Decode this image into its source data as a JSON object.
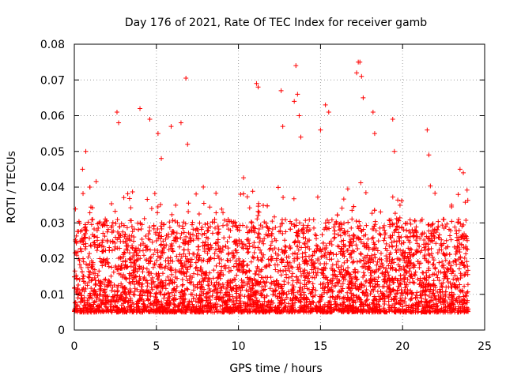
{
  "chart_data": {
    "type": "scatter",
    "title": "Day 176 of 2021, Rate Of TEC Index for receiver gamb",
    "xlabel": "GPS time / hours",
    "ylabel": "ROTI / TECUs",
    "xlim": [
      0,
      25
    ],
    "ylim": [
      0,
      0.08
    ],
    "xticks": [
      0,
      5,
      10,
      15,
      20,
      25
    ],
    "xtick_labels": [
      "0",
      "5",
      "10",
      "15",
      "20",
      "25"
    ],
    "yticks": [
      0,
      0.01,
      0.02,
      0.03,
      0.04,
      0.05,
      0.06,
      0.07,
      0.08
    ],
    "ytick_labels": [
      "0",
      "0.01",
      "0.02",
      "0.03",
      "0.04",
      "0.05",
      "0.06",
      "0.07",
      "0.08"
    ],
    "grid": true,
    "marker": "plus",
    "marker_color": "#ff0000",
    "x_range_observed": [
      0,
      24
    ],
    "series": [
      {
        "name": "ROTI",
        "note": "dense cloud of several thousand points, mostly between 0.005 and 0.03 TECU, reproduced as a representative sample",
        "x": [
          0.5,
          0.7,
          2.6,
          2.7,
          4.0,
          4.6,
          5.1,
          5.3,
          5.9,
          6.5,
          6.8,
          6.9,
          11.1,
          11.2,
          12.6,
          12.7,
          13.4,
          13.5,
          13.6,
          13.7,
          13.8,
          15.0,
          15.3,
          15.5,
          17.2,
          17.3,
          17.4,
          17.5,
          17.6,
          18.2,
          18.3,
          19.4,
          19.5,
          21.5,
          21.6,
          23.5,
          23.7
        ],
        "y": [
          0.045,
          0.05,
          0.061,
          0.058,
          0.062,
          0.059,
          0.055,
          0.048,
          0.057,
          0.058,
          0.0705,
          0.052,
          0.069,
          0.068,
          0.067,
          0.057,
          0.064,
          0.074,
          0.066,
          0.06,
          0.054,
          0.056,
          0.063,
          0.061,
          0.072,
          0.075,
          0.075,
          0.071,
          0.065,
          0.061,
          0.055,
          0.059,
          0.05,
          0.056,
          0.049,
          0.045,
          0.044
        ]
      }
    ]
  }
}
